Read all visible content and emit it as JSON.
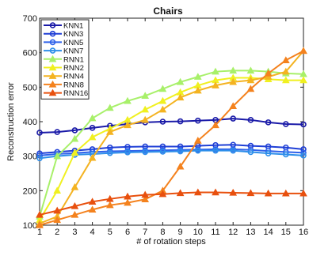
{
  "chart_data": {
    "type": "line",
    "title": "Chairs",
    "xlabel": "# of rotation steps",
    "ylabel": "Reconstruction error",
    "x": [
      1,
      2,
      3,
      4,
      5,
      6,
      7,
      8,
      9,
      10,
      11,
      12,
      13,
      14,
      15,
      16
    ],
    "xlim": [
      1,
      16
    ],
    "ylim": [
      100,
      700
    ],
    "yticks": [
      100,
      200,
      300,
      400,
      500,
      600,
      700
    ],
    "grid": false,
    "legend_position": "top-left",
    "series": [
      {
        "name": "KNN1",
        "color": "#1a1aa8",
        "marker": "circle",
        "values": [
          368,
          370,
          375,
          382,
          388,
          393,
          398,
          400,
          401,
          403,
          405,
          409,
          405,
          398,
          393,
          392
        ]
      },
      {
        "name": "KNN3",
        "color": "#1f3fd6",
        "marker": "circle",
        "values": [
          308,
          312,
          316,
          320,
          325,
          327,
          328,
          328,
          328,
          330,
          332,
          333,
          330,
          328,
          325,
          320
        ]
      },
      {
        "name": "KNN5",
        "color": "#2f62ea",
        "marker": "circle",
        "values": [
          302,
          306,
          309,
          312,
          314,
          315,
          316,
          317,
          318,
          319,
          320,
          320,
          318,
          315,
          312,
          310
        ]
      },
      {
        "name": "KNN7",
        "color": "#2e8fea",
        "marker": "circle",
        "values": [
          294,
          300,
          304,
          306,
          309,
          311,
          312,
          313,
          314,
          316,
          316,
          316,
          312,
          308,
          305,
          302
        ]
      },
      {
        "name": "RNN1",
        "color": "#a8f06a",
        "marker": "triangle",
        "values": [
          125,
          300,
          350,
          410,
          440,
          460,
          475,
          495,
          515,
          530,
          545,
          548,
          548,
          545,
          540,
          538
        ]
      },
      {
        "name": "RNN2",
        "color": "#f0f020",
        "marker": "triangle",
        "values": [
          115,
          200,
          310,
          355,
          380,
          405,
          435,
          460,
          485,
          505,
          520,
          527,
          527,
          523,
          520,
          520
        ]
      },
      {
        "name": "RNN4",
        "color": "#f4b321",
        "marker": "triangle",
        "values": [
          105,
          125,
          210,
          295,
          370,
          390,
          405,
          435,
          470,
          490,
          505,
          515,
          520,
          530,
          545,
          605
        ]
      },
      {
        "name": "RNN8",
        "color": "#f4821e",
        "marker": "triangle",
        "values": [
          100,
          115,
          130,
          145,
          158,
          165,
          175,
          200,
          270,
          345,
          390,
          445,
          495,
          540,
          578,
          605
        ]
      },
      {
        "name": "RNN16",
        "color": "#e8500e",
        "marker": "triangle",
        "values": [
          130,
          142,
          155,
          168,
          176,
          183,
          188,
          190,
          193,
          195,
          195,
          194,
          193,
          192,
          192,
          192
        ]
      }
    ]
  }
}
